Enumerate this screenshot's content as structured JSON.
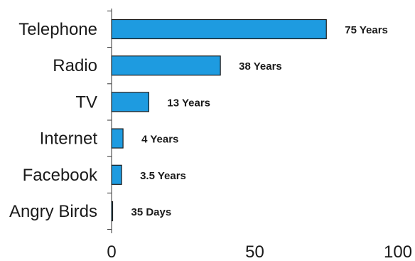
{
  "chart_data": {
    "type": "bar",
    "orientation": "horizontal",
    "categories": [
      "Telephone",
      "Radio",
      "TV",
      "Internet",
      "Facebook",
      "Angry Birds"
    ],
    "values": [
      75,
      38,
      13,
      4,
      3.5,
      0.1
    ],
    "data_labels": [
      "75 Years",
      "38 Years",
      "13 Years",
      "4 Years",
      "3.5 Years",
      "35 Days"
    ],
    "xlim": [
      0,
      100
    ],
    "xticks": [
      0,
      50,
      100
    ],
    "xtick_labels": [
      "0",
      "50",
      "100"
    ],
    "grid": false,
    "bar_color": "#1e9be0"
  }
}
